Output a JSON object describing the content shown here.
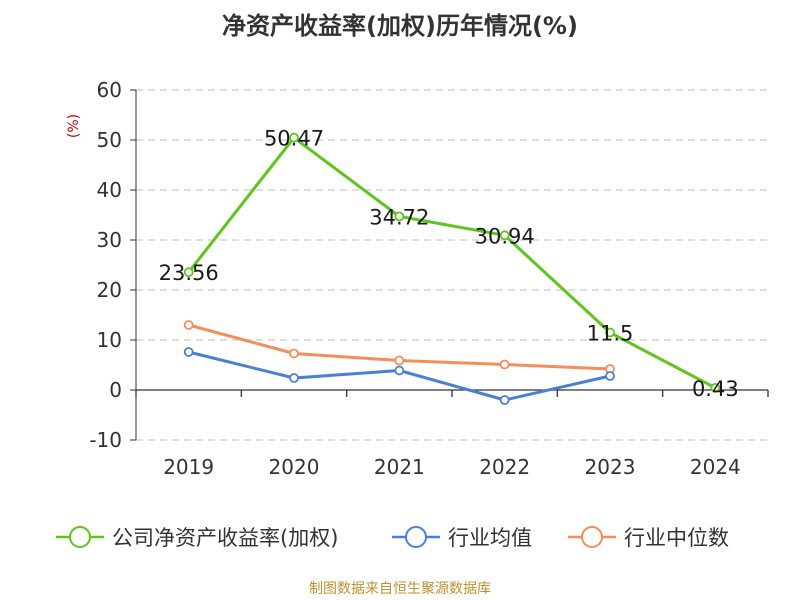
{
  "chart_data": {
    "type": "line",
    "title": "净资产收益率(加权)历年情况(%)",
    "ylabel": "(%)",
    "xlabel": "",
    "categories": [
      "2019",
      "2020",
      "2021",
      "2022",
      "2023",
      "2024"
    ],
    "ylim": [
      -10,
      60
    ],
    "yticks": [
      -10,
      0,
      10,
      20,
      30,
      40,
      50,
      60
    ],
    "grid": true,
    "legend_position": "bottom",
    "series": [
      {
        "name": "公司净资产收益率(加权)",
        "color": "#5ec51e",
        "values": [
          23.56,
          50.47,
          34.72,
          30.94,
          11.5,
          0.43
        ],
        "labels": [
          "23.56",
          "50.47",
          "34.72",
          "30.94",
          "11.5",
          "0.43"
        ]
      },
      {
        "name": "行业均值",
        "color": "#4a7fd8",
        "values": [
          7.6,
          2.4,
          3.9,
          -2.0,
          2.8,
          null
        ]
      },
      {
        "name": "行业中位数",
        "color": "#f58e5a",
        "values": [
          13.0,
          7.3,
          5.9,
          5.1,
          4.2,
          null
        ]
      }
    ]
  },
  "footer": {
    "source": "制图数据来自恒生聚源数据库"
  }
}
